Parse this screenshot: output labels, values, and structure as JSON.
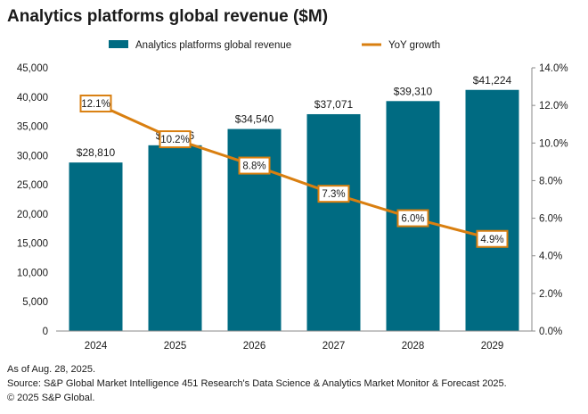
{
  "title": "Analytics platforms global revenue ($M)",
  "footer": {
    "date_note": "As of Aug. 28, 2025.",
    "source": "Source: S&P Global Market Intelligence 451 Research's Data Science & Analytics Market Monitor & Forecast 2025.",
    "copyright": "© 2025 S&P Global."
  },
  "colors": {
    "bar": "#006b82",
    "line": "#d97f10"
  },
  "chart_data": {
    "type": "bar",
    "title": "Analytics platforms global revenue ($M)",
    "categories": [
      "2024",
      "2025",
      "2026",
      "2027",
      "2028",
      "2029"
    ],
    "series": [
      {
        "name": "Analytics platforms global revenue",
        "type": "bar",
        "axis": "left",
        "values": [
          28810,
          31756,
          34540,
          37071,
          39310,
          41224
        ],
        "labels": [
          "$28,810",
          "$31,756",
          "$34,540",
          "$37,071",
          "$39,310",
          "$41,224"
        ]
      },
      {
        "name": "YoY growth",
        "type": "line",
        "axis": "right",
        "values": [
          12.1,
          10.2,
          8.8,
          7.3,
          6.0,
          4.9
        ],
        "labels": [
          "12.1%",
          "10.2%",
          "8.8%",
          "7.3%",
          "6.0%",
          "4.9%"
        ]
      }
    ],
    "y_left": {
      "range": [
        0,
        45000
      ],
      "ticks": [
        0,
        5000,
        10000,
        15000,
        20000,
        25000,
        30000,
        35000,
        40000,
        45000
      ],
      "tick_labels": [
        "0",
        "5,000",
        "10,000",
        "15,000",
        "20,000",
        "25,000",
        "30,000",
        "35,000",
        "40,000",
        "45,000"
      ]
    },
    "y_right": {
      "range": [
        0,
        14
      ],
      "ticks": [
        0,
        2,
        4,
        6,
        8,
        10,
        12,
        14
      ],
      "tick_labels": [
        "0.0%",
        "2.0%",
        "4.0%",
        "6.0%",
        "8.0%",
        "10.0%",
        "12.0%",
        "14.0%"
      ]
    },
    "grid": false,
    "legend_position": "top"
  }
}
